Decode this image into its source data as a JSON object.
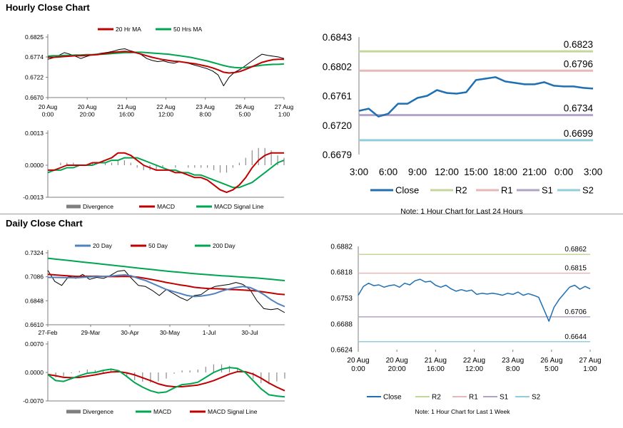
{
  "sections": {
    "hourly_title": "Hourly Close Chart",
    "daily_title": "Daily Close Chart"
  },
  "colors": {
    "red": "#c00000",
    "green": "#00a550",
    "blue": "#4f81bd",
    "dark_blue": "#1f6fb2",
    "r2": "#c3d69b",
    "r1": "#e6b8b7",
    "s1": "#b3a2c7",
    "s2": "#92cddc",
    "black": "#000000",
    "gray": "#7f7f7f"
  },
  "chart_data": [
    {
      "id": "hourly_price",
      "type": "line",
      "legend": [
        "20 Hr MA",
        "50 Hrs MA"
      ],
      "y_ticks": [
        "0.6825",
        "0.6774",
        "0.6722",
        "0.6670"
      ],
      "ylim": [
        0.667,
        0.6825
      ],
      "x_ticks": [
        "20 Aug 0:00",
        "20 Aug 20:00",
        "21 Aug 16:00",
        "22 Aug 12:00",
        "23 Aug 8:00",
        "26 Aug 5:00",
        "27 Aug 1:00"
      ],
      "price": [
        0.6768,
        0.6772,
        0.6778,
        0.6785,
        0.6781,
        0.6776,
        0.677,
        0.6775,
        0.6779,
        0.6782,
        0.6784,
        0.6786,
        0.6789,
        0.6793,
        0.6795,
        0.679,
        0.6786,
        0.678,
        0.677,
        0.6765,
        0.6762,
        0.6764,
        0.676,
        0.6758,
        0.6762,
        0.676,
        0.6756,
        0.6752,
        0.6748,
        0.6744,
        0.6738,
        0.6728,
        0.67,
        0.6722,
        0.6735,
        0.6742,
        0.6752,
        0.6762,
        0.6772,
        0.6781,
        0.6778,
        0.6776,
        0.6774,
        0.677
      ],
      "ma20": [
        0.6773,
        0.6773,
        0.6774,
        0.6775,
        0.6776,
        0.6777,
        0.6777,
        0.6778,
        0.6779,
        0.678,
        0.6782,
        0.6784,
        0.6786,
        0.6787,
        0.6788,
        0.6787,
        0.6785,
        0.6781,
        0.6777,
        0.6773,
        0.677,
        0.6767,
        0.6765,
        0.6763,
        0.6762,
        0.676,
        0.6758,
        0.6756,
        0.6753,
        0.675,
        0.6746,
        0.6741,
        0.6735,
        0.6733,
        0.6734,
        0.6737,
        0.6742,
        0.6748,
        0.6754,
        0.676,
        0.6764,
        0.6767,
        0.6768,
        0.6768
      ],
      "ma50": [
        0.6776,
        0.6777,
        0.6777,
        0.6778,
        0.6778,
        0.6779,
        0.6779,
        0.678,
        0.678,
        0.6781,
        0.6781,
        0.6782,
        0.6783,
        0.6784,
        0.6785,
        0.6785,
        0.6786,
        0.6786,
        0.6785,
        0.6784,
        0.6783,
        0.6782,
        0.6781,
        0.6779,
        0.6777,
        0.6775,
        0.6773,
        0.677,
        0.6767,
        0.6764,
        0.676,
        0.6756,
        0.6752,
        0.6749,
        0.6747,
        0.6746,
        0.6747,
        0.6749,
        0.6751,
        0.6753,
        0.6754,
        0.6755,
        0.6755,
        0.6756
      ]
    },
    {
      "id": "hourly_macd",
      "type": "line",
      "legend": [
        "Divergence",
        "MACD",
        "MACD Signal Line"
      ],
      "y_ticks": [
        "0.0013",
        "0.0000",
        "-0.0013"
      ],
      "ylim": [
        -0.0013,
        0.0013
      ],
      "macd": [
        -0.0002,
        -0.0002,
        -0.0001,
        0.0,
        0.0,
        0.0,
        0.0,
        0.0001,
        0.0001,
        0.0002,
        0.0003,
        0.0005,
        0.0005,
        0.0004,
        0.0002,
        0.0,
        -0.0001,
        -0.0002,
        -0.0002,
        -0.0002,
        -0.0003,
        -0.0003,
        -0.0004,
        -0.0005,
        -0.0005,
        -0.0006,
        -0.0008,
        -0.001,
        -0.0011,
        -0.001,
        -0.0008,
        -0.0005,
        -0.0001,
        0.0002,
        0.0004,
        0.0005,
        0.0005,
        0.0005
      ],
      "signal": [
        -0.0003,
        -0.0002,
        -0.0002,
        -0.0001,
        -0.0001,
        0.0,
        0.0,
        0.0,
        0.0001,
        0.0001,
        0.0002,
        0.0002,
        0.0003,
        0.0003,
        0.0003,
        0.0002,
        0.0001,
        0.0,
        -0.0001,
        -0.0002,
        -0.0002,
        -0.0003,
        -0.0003,
        -0.0004,
        -0.0004,
        -0.0005,
        -0.0006,
        -0.0007,
        -0.0008,
        -0.0009,
        -0.0009,
        -0.0008,
        -0.0007,
        -0.0005,
        -0.0003,
        -0.0001,
        0.0001,
        0.0002
      ],
      "divergence": [
        0.0001,
        0.0,
        0.0001,
        0.0001,
        0.0001,
        0.0,
        0.0,
        0.0001,
        0.0,
        0.0001,
        0.0001,
        0.0002,
        0.0002,
        0.0001,
        -0.0001,
        -0.0002,
        -0.0002,
        -0.0002,
        -0.0001,
        0.0,
        -0.0001,
        0.0,
        -0.0001,
        -0.0001,
        -0.0001,
        -0.0001,
        -0.0002,
        -0.0003,
        -0.0003,
        -0.0001,
        0.0001,
        0.0003,
        0.0006,
        0.0007,
        0.0007,
        0.0006,
        0.0004,
        0.0003
      ]
    },
    {
      "id": "hourly_24h",
      "type": "line",
      "title_note": "Note: 1 Hour Chart for Last 24 Hours",
      "y_ticks": [
        "0.6843",
        "0.6802",
        "0.6761",
        "0.6720",
        "0.6679"
      ],
      "ylim": [
        0.6679,
        0.6843
      ],
      "x_ticks": [
        "3:00",
        "6:00",
        "9:00",
        "12:00",
        "15:00",
        "18:00",
        "21:00",
        "0:00",
        "3:00"
      ],
      "close": [
        0.674,
        0.6743,
        0.6732,
        0.6736,
        0.675,
        0.675,
        0.6758,
        0.6761,
        0.6769,
        0.6765,
        0.6764,
        0.6766,
        0.6783,
        0.6785,
        0.6787,
        0.6781,
        0.6779,
        0.6777,
        0.6777,
        0.678,
        0.6775,
        0.6774,
        0.6774,
        0.6772,
        0.6771
      ],
      "levels": [
        {
          "name": "R2",
          "value": 0.6823,
          "label": "0.6823"
        },
        {
          "name": "R1",
          "value": 0.6796,
          "label": "0.6796"
        },
        {
          "name": "S1",
          "value": 0.6734,
          "label": "0.6734"
        },
        {
          "name": "S2",
          "value": 0.6699,
          "label": "0.6699"
        }
      ],
      "legend": [
        "Close",
        "R2",
        "R1",
        "S1",
        "S2"
      ]
    },
    {
      "id": "daily_price",
      "type": "line",
      "legend": [
        "20 Day",
        "50 Day",
        "200 Day"
      ],
      "y_ticks": [
        "0.7324",
        "0.7086",
        "0.6848",
        "0.6610"
      ],
      "ylim": [
        0.661,
        0.7324
      ],
      "x_ticks": [
        "27-Feb",
        "29-Mar",
        "30-Apr",
        "30-May",
        "1-Jul",
        "30-Jul"
      ],
      "price": [
        0.715,
        0.704,
        0.7,
        0.709,
        0.707,
        0.711,
        0.706,
        0.708,
        0.707,
        0.71,
        0.714,
        0.715,
        0.707,
        0.7,
        0.699,
        0.695,
        0.69,
        0.696,
        0.692,
        0.688,
        0.685,
        0.69,
        0.691,
        0.696,
        0.699,
        0.7,
        0.701,
        0.703,
        0.701,
        0.696,
        0.685,
        0.677,
        0.676,
        0.677,
        0.673
      ],
      "ma20": [
        0.708,
        0.708,
        0.7078,
        0.7077,
        0.7076,
        0.708,
        0.7085,
        0.709,
        0.709,
        0.7092,
        0.71,
        0.7105,
        0.7095,
        0.707,
        0.705,
        0.702,
        0.699,
        0.696,
        0.694,
        0.692,
        0.69,
        0.689,
        0.6895,
        0.6905,
        0.692,
        0.6945,
        0.6965,
        0.698,
        0.699,
        0.698,
        0.695,
        0.691,
        0.686,
        0.682,
        0.679
      ],
      "ma50": [
        0.711,
        0.7105,
        0.71,
        0.7095,
        0.709,
        0.709,
        0.7091,
        0.7092,
        0.709,
        0.7088,
        0.7088,
        0.709,
        0.7088,
        0.7082,
        0.707,
        0.7058,
        0.7045,
        0.703,
        0.7018,
        0.7005,
        0.6995,
        0.6982,
        0.6975,
        0.697,
        0.6968,
        0.6965,
        0.696,
        0.6958,
        0.6955,
        0.695,
        0.6945,
        0.6935,
        0.6925,
        0.6915,
        0.691
      ],
      "ma200": [
        0.727,
        0.7262,
        0.7255,
        0.7248,
        0.724,
        0.7232,
        0.7225,
        0.7218,
        0.721,
        0.7203,
        0.7195,
        0.7188,
        0.718,
        0.7172,
        0.7165,
        0.7158,
        0.715,
        0.7143,
        0.7136,
        0.713,
        0.7123,
        0.7117,
        0.7112,
        0.7106,
        0.7101,
        0.7096,
        0.7092,
        0.7087,
        0.7083,
        0.7078,
        0.7074,
        0.7068,
        0.7062,
        0.7055,
        0.7048
      ]
    },
    {
      "id": "daily_macd",
      "type": "line",
      "legend": [
        "Divergence",
        "MACD",
        "MACD Signal Line"
      ],
      "y_ticks": [
        "0.0070",
        "0.0000",
        "-0.0070"
      ],
      "ylim": [
        -0.007,
        0.007
      ],
      "macd": [
        -0.0005,
        -0.002,
        -0.0022,
        -0.0015,
        -0.0008,
        -0.0002,
        0.0,
        0.0005,
        0.0008,
        0.0004,
        -0.001,
        -0.0025,
        -0.0036,
        -0.0045,
        -0.005,
        -0.0048,
        -0.0038,
        -0.003,
        -0.0028,
        -0.0024,
        -0.0012,
        0.0,
        0.0008,
        0.0012,
        0.001,
        0.0,
        -0.002,
        -0.004,
        -0.0055,
        -0.0058,
        -0.006
      ],
      "signal": [
        -0.0005,
        -0.0008,
        -0.0012,
        -0.0013,
        -0.0012,
        -0.0009,
        -0.0006,
        -0.0002,
        0.0001,
        0.0002,
        -0.0001,
        -0.0006,
        -0.0013,
        -0.002,
        -0.0028,
        -0.0033,
        -0.0035,
        -0.0035,
        -0.0033,
        -0.0031,
        -0.0026,
        -0.002,
        -0.0012,
        -0.0004,
        0.0002,
        0.0002,
        -0.0004,
        -0.0014,
        -0.0026,
        -0.0036,
        -0.0045
      ],
      "divergence": [
        0.0,
        -0.0012,
        -0.001,
        -0.0002,
        0.0004,
        0.0007,
        0.0006,
        0.0007,
        0.0007,
        0.0002,
        -0.0009,
        -0.0019,
        -0.0023,
        -0.0025,
        -0.0022,
        -0.0015,
        -0.0003,
        0.0005,
        0.0005,
        0.0007,
        0.0014,
        0.002,
        0.002,
        0.0016,
        0.0008,
        -0.0002,
        -0.0016,
        -0.0026,
        -0.0029,
        -0.0022,
        -0.0015
      ]
    },
    {
      "id": "weekly_1h",
      "type": "line",
      "title_note": "Note: 1 Hour Chart for Last 1 Week",
      "y_ticks": [
        "0.6882",
        "0.6818",
        "0.6753",
        "0.6688",
        "0.6624"
      ],
      "ylim": [
        0.6624,
        0.6882
      ],
      "x_ticks": [
        "20 Aug 0:00",
        "20 Aug 20:00",
        "21 Aug 16:00",
        "22 Aug 12:00",
        "23 Aug 8:00",
        "26 Aug 5:00",
        "27 Aug 1:00"
      ],
      "close": [
        0.676,
        0.6782,
        0.679,
        0.6784,
        0.6786,
        0.678,
        0.6784,
        0.6786,
        0.678,
        0.679,
        0.6786,
        0.6796,
        0.68,
        0.6793,
        0.6795,
        0.6785,
        0.678,
        0.6785,
        0.6776,
        0.677,
        0.6774,
        0.677,
        0.6773,
        0.6762,
        0.6765,
        0.6763,
        0.6765,
        0.6763,
        0.676,
        0.6765,
        0.6762,
        0.6768,
        0.676,
        0.6764,
        0.676,
        0.6755,
        0.6725,
        0.6695,
        0.673,
        0.675,
        0.6765,
        0.678,
        0.6785,
        0.6775,
        0.6782,
        0.6776
      ],
      "levels": [
        {
          "name": "R2",
          "value": 0.6862,
          "label": "0.6862"
        },
        {
          "name": "R1",
          "value": 0.6815,
          "label": "0.6815"
        },
        {
          "name": "S1",
          "value": 0.6706,
          "label": "0.6706"
        },
        {
          "name": "S2",
          "value": 0.6644,
          "label": "0.6644"
        }
      ],
      "legend": [
        "Close",
        "R2",
        "R1",
        "S1",
        "S2"
      ]
    }
  ]
}
